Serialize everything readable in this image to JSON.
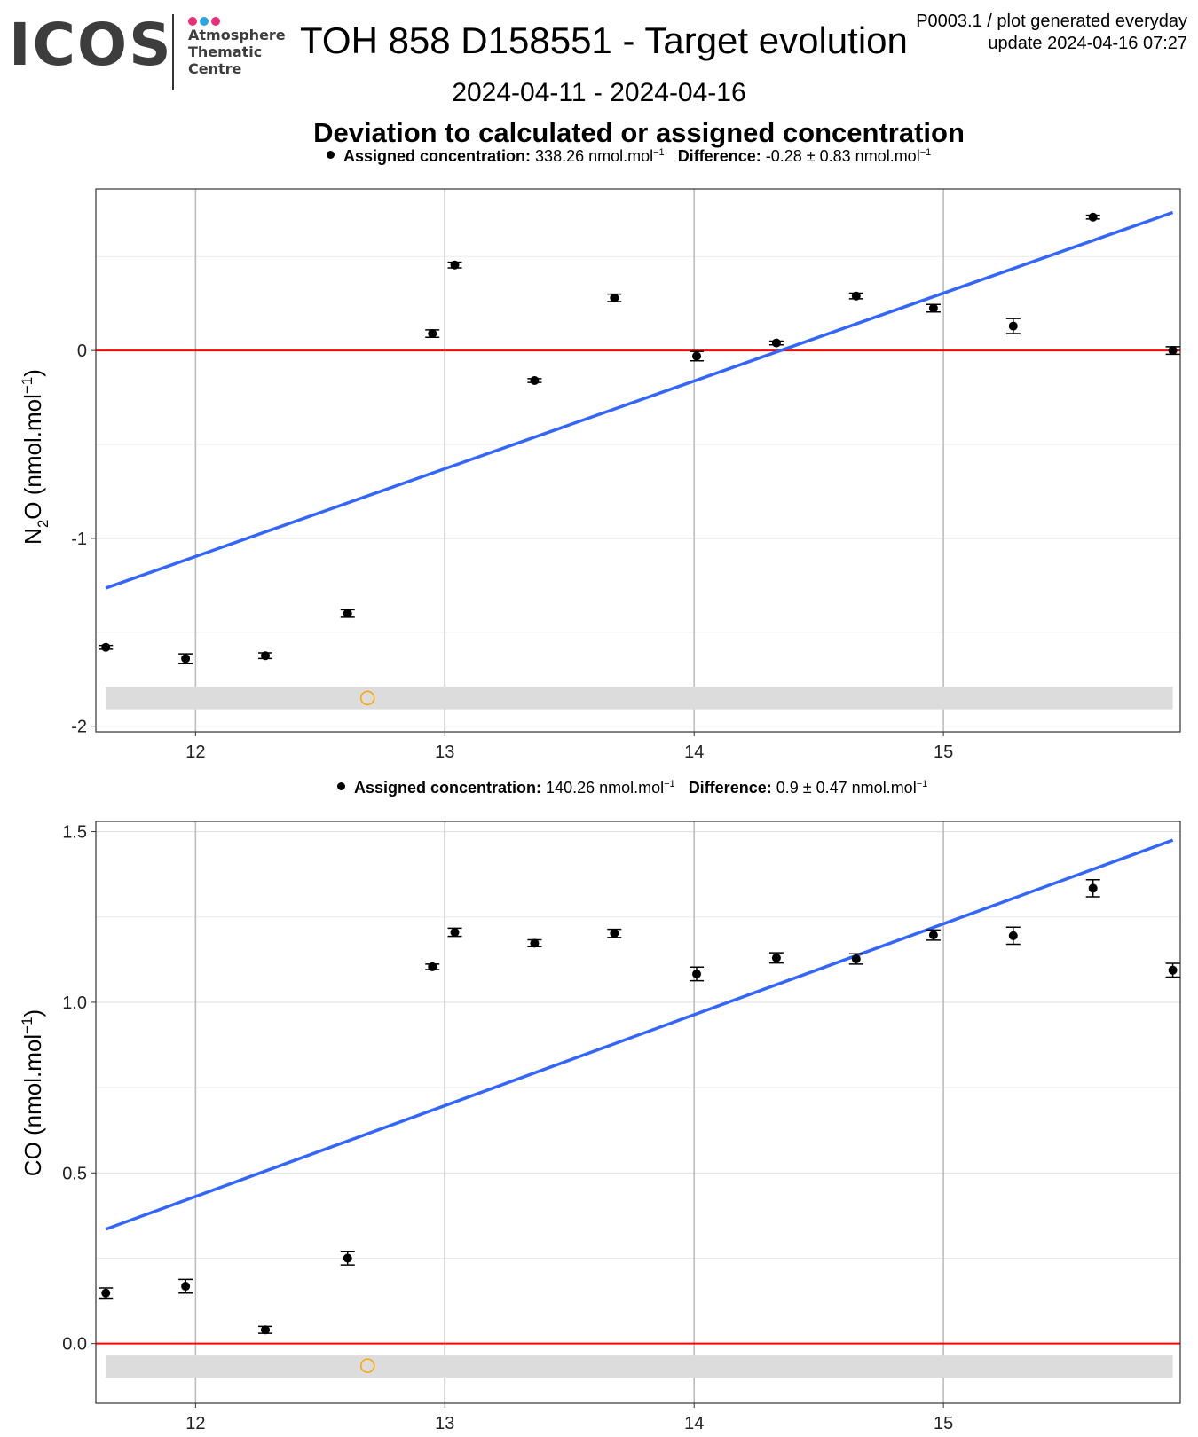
{
  "header": {
    "logo_word": "ICOS",
    "logo_lines": [
      "Atmosphere",
      "Thematic",
      "Centre"
    ],
    "logo_dot_colors": [
      "#e8317a",
      "#2aa7e0",
      "#e8317a"
    ],
    "title": "TOH 858 D158551 - Target evolution",
    "meta_line1": "P0003.1 / plot generated everyday",
    "meta_line2": "update  2024-04-16 07:27",
    "date_range": "2024-04-11 - 2024-04-16",
    "subtitle": "Deviation to calculated or assigned concentration"
  },
  "colors": {
    "trend": "#3366ff",
    "zero_line": "#ff0000",
    "points": "#000000",
    "outlier": "#ffa500",
    "band": "#dcdcdc"
  },
  "panels": [
    {
      "legend": {
        "assigned_label": "Assigned concentration:",
        "assigned_value": "338.26 nmol.mol",
        "difference_label": "Difference:",
        "difference_value": "-0.28 ± 0.83 nmol.mol",
        "unit_exp": "−1"
      },
      "ylabel_main": "N",
      "ylabel_sub": "2",
      "ylabel_rest": "O (nmol.mol",
      "ylabel_exp": "−1",
      "ylabel_end": ")"
    },
    {
      "legend": {
        "assigned_label": "Assigned concentration:",
        "assigned_value": "140.26 nmol.mol",
        "difference_label": "Difference:",
        "difference_value": "0.9 ± 0.47 nmol.mol",
        "unit_exp": "−1"
      },
      "ylabel_main": "CO (nmol.mol",
      "ylabel_sub": "",
      "ylabel_rest": "",
      "ylabel_exp": "−1",
      "ylabel_end": ")"
    }
  ],
  "chart_data": [
    {
      "type": "scatter",
      "title": "",
      "ylabel": "N2O (nmol.mol-1)",
      "xlim": [
        11.6,
        15.95
      ],
      "ylim": [
        -2.03,
        0.86
      ],
      "xticks": [
        12,
        13,
        14,
        15
      ],
      "yticks": [
        -2,
        -1,
        0
      ],
      "ytick_labels": [
        "-2",
        "-1",
        "0"
      ],
      "grid": true,
      "points": [
        {
          "x": 11.64,
          "y": -1.58,
          "err": 0.01
        },
        {
          "x": 11.96,
          "y": -1.64,
          "err": 0.025
        },
        {
          "x": 12.28,
          "y": -1.625,
          "err": 0.015
        },
        {
          "x": 12.61,
          "y": -1.4,
          "err": 0.02
        },
        {
          "x": 12.95,
          "y": 0.09,
          "err": 0.02
        },
        {
          "x": 13.04,
          "y": 0.455,
          "err": 0.015
        },
        {
          "x": 13.36,
          "y": -0.16,
          "err": 0.01
        },
        {
          "x": 13.68,
          "y": 0.28,
          "err": 0.02
        },
        {
          "x": 14.01,
          "y": -0.03,
          "err": 0.025
        },
        {
          "x": 14.33,
          "y": 0.04,
          "err": 0.01
        },
        {
          "x": 14.65,
          "y": 0.29,
          "err": 0.015
        },
        {
          "x": 14.96,
          "y": 0.225,
          "err": 0.02
        },
        {
          "x": 15.28,
          "y": 0.13,
          "err": 0.04
        },
        {
          "x": 15.6,
          "y": 0.71,
          "err": 0.01
        },
        {
          "x": 15.92,
          "y": 0.0,
          "err": 0.02
        }
      ],
      "outliers": [
        {
          "x": 12.69,
          "y": -1.85
        }
      ],
      "trend": {
        "x": [
          11.64,
          15.92
        ],
        "y": [
          -1.265,
          0.735
        ]
      },
      "zero_line": 0,
      "band": {
        "x": [
          11.64,
          15.92
        ],
        "y": [
          -1.91,
          -1.79
        ]
      }
    },
    {
      "type": "scatter",
      "title": "",
      "ylabel": "CO (nmol.mol-1)",
      "xlim": [
        11.6,
        15.95
      ],
      "ylim": [
        -0.175,
        1.53
      ],
      "xticks": [
        12,
        13,
        14,
        15
      ],
      "yticks": [
        0.0,
        0.5,
        1.0,
        1.5
      ],
      "ytick_labels": [
        "0.0",
        "0.5",
        "1.0",
        "1.5"
      ],
      "grid": true,
      "points": [
        {
          "x": 11.64,
          "y": 0.148,
          "err": 0.015
        },
        {
          "x": 11.96,
          "y": 0.168,
          "err": 0.02
        },
        {
          "x": 12.28,
          "y": 0.04,
          "err": 0.01
        },
        {
          "x": 12.61,
          "y": 0.25,
          "err": 0.02
        },
        {
          "x": 12.95,
          "y": 1.104,
          "err": 0.008
        },
        {
          "x": 13.04,
          "y": 1.205,
          "err": 0.012
        },
        {
          "x": 13.36,
          "y": 1.173,
          "err": 0.01
        },
        {
          "x": 13.68,
          "y": 1.202,
          "err": 0.012
        },
        {
          "x": 14.01,
          "y": 1.083,
          "err": 0.02
        },
        {
          "x": 14.33,
          "y": 1.13,
          "err": 0.015
        },
        {
          "x": 14.65,
          "y": 1.127,
          "err": 0.015
        },
        {
          "x": 14.96,
          "y": 1.197,
          "err": 0.015
        },
        {
          "x": 15.28,
          "y": 1.195,
          "err": 0.025
        },
        {
          "x": 15.6,
          "y": 1.334,
          "err": 0.025
        },
        {
          "x": 15.92,
          "y": 1.094,
          "err": 0.02
        }
      ],
      "outliers": [
        {
          "x": 12.69,
          "y": -0.065
        }
      ],
      "trend": {
        "x": [
          11.64,
          15.92
        ],
        "y": [
          0.335,
          1.475
        ]
      },
      "zero_line": 0,
      "band": {
        "x": [
          11.64,
          15.92
        ],
        "y": [
          -0.1,
          -0.035
        ]
      }
    }
  ]
}
